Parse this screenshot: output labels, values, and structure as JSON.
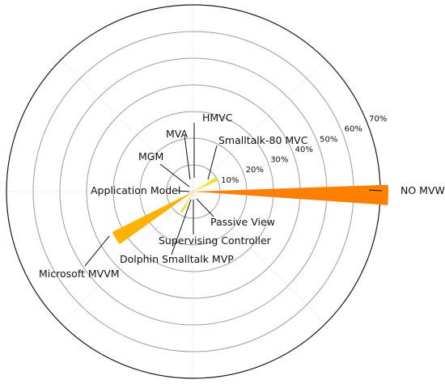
{
  "chart_data": {
    "type": "bar",
    "subtype": "polar",
    "title": "",
    "rlim": [
      0,
      70
    ],
    "r_ticks": [
      10,
      20,
      30,
      40,
      50,
      60,
      70
    ],
    "r_tick_labels": [
      "10%",
      "20%",
      "30%",
      "40%",
      "50%",
      "60%",
      "70%"
    ],
    "grid": true,
    "categories": [
      "NO MVW",
      "Smalltalk-80 MVC",
      "HMVC",
      "MVA",
      "MGM",
      "Application Model",
      "Microsoft MVVM",
      "Dolphin Smalltalk MVP",
      "Supervising Controller",
      "Passive View"
    ],
    "values": [
      73,
      10,
      2,
      1,
      1,
      1,
      34,
      9,
      2,
      2
    ],
    "bar_colors": [
      "#ff7f00",
      "#f2e030",
      "#f2e030",
      "#f2e030",
      "#f2e030",
      "#f2e030",
      "#ffb300",
      "#f2e030",
      "#f2e030",
      "#f2e030"
    ]
  }
}
